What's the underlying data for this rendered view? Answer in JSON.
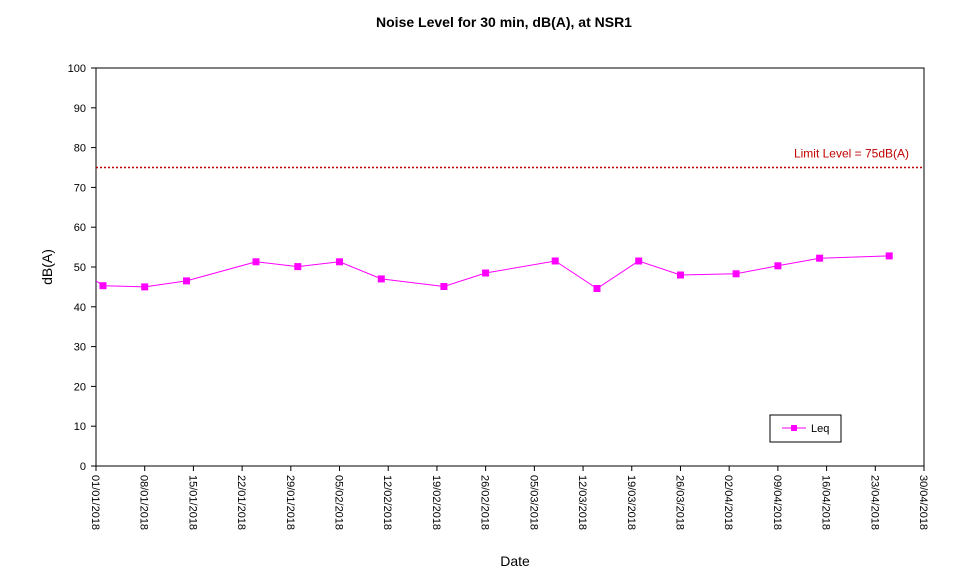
{
  "chart_data": {
    "type": "line",
    "title": "Noise Level for 30 min, dB(A), at NSR1",
    "xlabel": "Date",
    "ylabel": "dB(A)",
    "ylim": [
      0,
      100
    ],
    "yticks": [
      "0",
      "10",
      "20",
      "30",
      "40",
      "50",
      "60",
      "70",
      "80",
      "90",
      "100"
    ],
    "xlim": [
      "2018-01-01",
      "2018-04-30"
    ],
    "xticks": [
      "01/01/2018",
      "08/01/2018",
      "15/01/2018",
      "22/01/2018",
      "29/01/2018",
      "05/02/2018",
      "12/02/2018",
      "19/02/2018",
      "26/02/2018",
      "05/03/2018",
      "12/03/2018",
      "19/03/2018",
      "26/03/2018",
      "02/04/2018",
      "09/04/2018",
      "16/04/2018",
      "23/04/2018",
      "30/04/2018"
    ],
    "grid": false,
    "legend_position": "bottom-right",
    "limit": {
      "value": 75,
      "label": "Limit Level = 75dB(A)",
      "color": "#c00000"
    },
    "series": [
      {
        "name": "Leq",
        "color": "#ff00ff",
        "x": [
          "2018-01-02",
          "2018-01-08",
          "2018-01-14",
          "2018-01-24",
          "2018-01-30",
          "2018-02-05",
          "2018-02-11",
          "2018-02-20",
          "2018-02-26",
          "2018-03-08",
          "2018-03-14",
          "2018-03-20",
          "2018-03-26",
          "2018-04-03",
          "2018-04-09",
          "2018-04-15",
          "2018-04-25"
        ],
        "values": [
          45.3,
          45.0,
          46.5,
          51.3,
          50.1,
          51.3,
          47.0,
          45.1,
          48.5,
          51.5,
          44.6,
          51.5,
          48.0,
          48.3,
          50.3,
          52.2,
          52.8
        ]
      }
    ]
  }
}
